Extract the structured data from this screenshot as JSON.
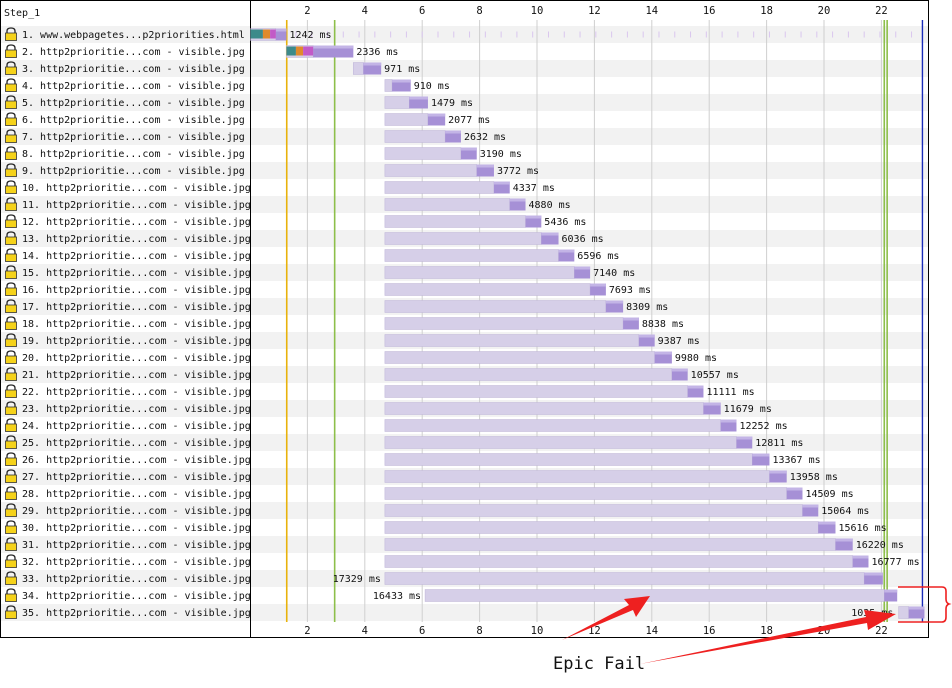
{
  "step_label": "Step_1",
  "colors": {
    "bar_light": "#d6cfe8",
    "bar_dark": "#a690d6",
    "dns": "#3d8a8a",
    "connect": "#e08a2c",
    "ssl": "#c25ac7",
    "stripe": "#f2f2f2",
    "start_render": "#e8b20c",
    "dom_content": "#8dbf4a",
    "doc_complete": "#1a2bb8",
    "annotation": "#ee2020"
  },
  "chart_data": {
    "type": "waterfall",
    "x_unit": "seconds",
    "x_range": [
      0,
      23.5
    ],
    "x_ticks": [
      2,
      4,
      6,
      8,
      10,
      12,
      14,
      16,
      18,
      20,
      22
    ],
    "markers": [
      {
        "name": "start-render",
        "x": 1.28
      },
      {
        "name": "dom-content-loaded",
        "x": 2.95
      },
      {
        "name": "on-load",
        "x": 22.1
      },
      {
        "name": "on-load",
        "x": 22.2
      },
      {
        "name": "document-complete",
        "x": 23.43
      }
    ],
    "requests": [
      {
        "label": "1. www.webpagetes...p2priorities.html",
        "start": 0.02,
        "ttfb_end": 0.9,
        "end": 1.27,
        "duration": "1242 ms",
        "dns": [
          0.02,
          0.45
        ],
        "connect": [
          0.45,
          0.7
        ],
        "ssl": [
          0.7,
          0.9
        ]
      },
      {
        "label": "2. http2prioritie...com - visible.jpg",
        "start": 1.27,
        "ttfb_end": 2.2,
        "end": 3.6,
        "duration": "2336 ms",
        "dns": [
          1.27,
          1.6
        ],
        "connect": [
          1.6,
          1.85
        ],
        "ssl": [
          1.85,
          2.2
        ]
      },
      {
        "label": "3. http2prioritie...com - visible.jpg",
        "start": 3.6,
        "ttfb_end": 3.95,
        "end": 4.57,
        "duration": "971 ms"
      },
      {
        "label": "4. http2prioritie...com - visible.jpg",
        "start": 4.7,
        "ttfb_end": 4.95,
        "end": 5.6,
        "duration": "910 ms"
      },
      {
        "label": "5. http2prioritie...com - visible.jpg",
        "start": 4.7,
        "ttfb_end": 5.55,
        "end": 6.2,
        "duration": "1479 ms"
      },
      {
        "label": "6. http2prioritie...com - visible.jpg",
        "start": 4.7,
        "ttfb_end": 6.2,
        "end": 6.8,
        "duration": "2077 ms"
      },
      {
        "label": "7. http2prioritie...com - visible.jpg",
        "start": 4.7,
        "ttfb_end": 6.8,
        "end": 7.35,
        "duration": "2632 ms"
      },
      {
        "label": "8. http2prioritie...com - visible.jpg",
        "start": 4.7,
        "ttfb_end": 7.35,
        "end": 7.9,
        "duration": "3190 ms"
      },
      {
        "label": "9. http2prioritie...com - visible.jpg",
        "start": 4.7,
        "ttfb_end": 7.9,
        "end": 8.5,
        "duration": "3772 ms"
      },
      {
        "label": "10. http2prioritie...com - visible.jpg",
        "start": 4.7,
        "ttfb_end": 8.5,
        "end": 9.05,
        "duration": "4337 ms"
      },
      {
        "label": "11. http2prioritie...com - visible.jpg",
        "start": 4.7,
        "ttfb_end": 9.05,
        "end": 9.6,
        "duration": "4880 ms"
      },
      {
        "label": "12. http2prioritie...com - visible.jpg",
        "start": 4.7,
        "ttfb_end": 9.6,
        "end": 10.15,
        "duration": "5436 ms"
      },
      {
        "label": "13. http2prioritie...com - visible.jpg",
        "start": 4.7,
        "ttfb_end": 10.15,
        "end": 10.75,
        "duration": "6036 ms"
      },
      {
        "label": "14. http2prioritie...com - visible.jpg",
        "start": 4.7,
        "ttfb_end": 10.75,
        "end": 11.3,
        "duration": "6596 ms"
      },
      {
        "label": "15. http2prioritie...com - visible.jpg",
        "start": 4.7,
        "ttfb_end": 11.3,
        "end": 11.85,
        "duration": "7140 ms"
      },
      {
        "label": "16. http2prioritie...com - visible.jpg",
        "start": 4.7,
        "ttfb_end": 11.85,
        "end": 12.4,
        "duration": "7693 ms"
      },
      {
        "label": "17. http2prioritie...com - visible.jpg",
        "start": 4.7,
        "ttfb_end": 12.4,
        "end": 13.0,
        "duration": "8309 ms"
      },
      {
        "label": "18. http2prioritie...com - visible.jpg",
        "start": 4.7,
        "ttfb_end": 13.0,
        "end": 13.55,
        "duration": "8838 ms"
      },
      {
        "label": "19. http2prioritie...com - visible.jpg",
        "start": 4.7,
        "ttfb_end": 13.55,
        "end": 14.1,
        "duration": "9387 ms"
      },
      {
        "label": "20. http2prioritie...com - visible.jpg",
        "start": 4.7,
        "ttfb_end": 14.1,
        "end": 14.7,
        "duration": "9980 ms"
      },
      {
        "label": "21. http2prioritie...com - visible.jpg",
        "start": 4.7,
        "ttfb_end": 14.7,
        "end": 15.25,
        "duration": "10557 ms"
      },
      {
        "label": "22. http2prioritie...com - visible.jpg",
        "start": 4.7,
        "ttfb_end": 15.25,
        "end": 15.8,
        "duration": "11111 ms"
      },
      {
        "label": "23. http2prioritie...com - visible.jpg",
        "start": 4.7,
        "ttfb_end": 15.8,
        "end": 16.4,
        "duration": "11679 ms"
      },
      {
        "label": "24. http2prioritie...com - visible.jpg",
        "start": 4.7,
        "ttfb_end": 16.4,
        "end": 16.95,
        "duration": "12252 ms"
      },
      {
        "label": "25. http2prioritie...com - visible.jpg",
        "start": 4.7,
        "ttfb_end": 16.95,
        "end": 17.5,
        "duration": "12811 ms"
      },
      {
        "label": "26. http2prioritie...com - visible.jpg",
        "start": 4.7,
        "ttfb_end": 17.5,
        "end": 18.1,
        "duration": "13367 ms"
      },
      {
        "label": "27. http2prioritie...com - visible.jpg",
        "start": 4.7,
        "ttfb_end": 18.1,
        "end": 18.7,
        "duration": "13958 ms"
      },
      {
        "label": "28. http2prioritie...com - visible.jpg",
        "start": 4.7,
        "ttfb_end": 18.7,
        "end": 19.25,
        "duration": "14509 ms"
      },
      {
        "label": "29. http2prioritie...com - visible.jpg",
        "start": 4.7,
        "ttfb_end": 19.25,
        "end": 19.8,
        "duration": "15064 ms"
      },
      {
        "label": "30. http2prioritie...com - visible.jpg",
        "start": 4.7,
        "ttfb_end": 19.8,
        "end": 20.4,
        "duration": "15616 ms"
      },
      {
        "label": "31. http2prioritie...com - visible.jpg",
        "start": 4.7,
        "ttfb_end": 20.4,
        "end": 21.0,
        "duration": "16220 ms"
      },
      {
        "label": "32. http2prioritie...com - visible.jpg",
        "start": 4.7,
        "ttfb_end": 21.0,
        "end": 21.55,
        "duration": "16777 ms"
      },
      {
        "label": "33. http2prioritie...com - visible.jpg",
        "start": 4.7,
        "ttfb_end": 21.4,
        "end": 22.05,
        "duration": "17329 ms"
      },
      {
        "label": "34. http2prioritie...com - visible.jpg",
        "start": 6.1,
        "ttfb_end": 22.1,
        "end": 22.55,
        "duration": "16433 ms"
      },
      {
        "label": "35. http2prioritie...com - visible.jpg",
        "start": 22.6,
        "ttfb_end": 22.95,
        "end": 23.5,
        "duration": "1035 ms"
      }
    ]
  },
  "annotation": {
    "text": "Epic Fail"
  }
}
